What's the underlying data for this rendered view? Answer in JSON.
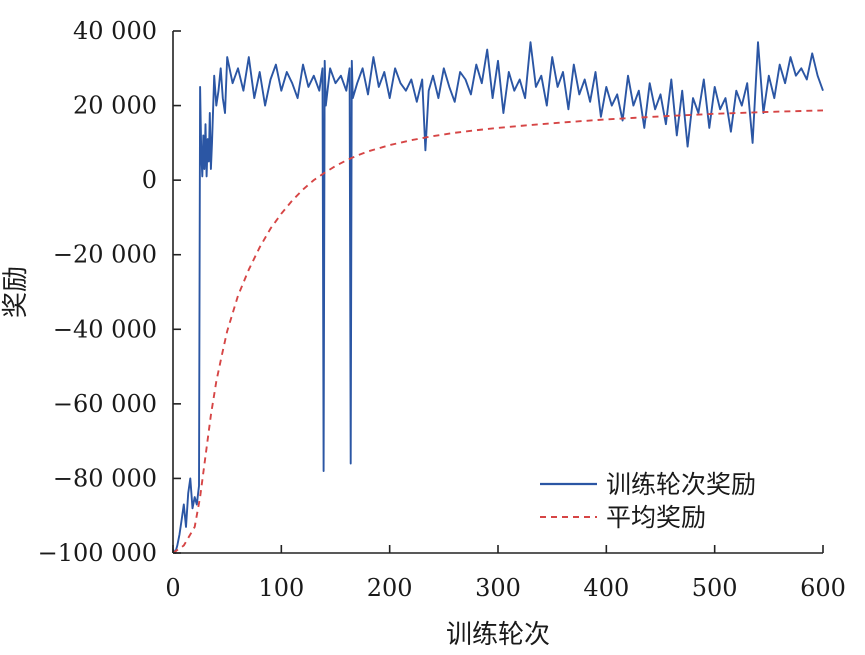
{
  "chart_data": {
    "type": "line",
    "xlabel": "训练轮次",
    "ylabel": "奖励",
    "xlim": [
      0,
      600
    ],
    "ylim": [
      -100000,
      40000
    ],
    "x_ticks": [
      0,
      100,
      200,
      300,
      400,
      500,
      600
    ],
    "x_tick_labels": [
      "0",
      "100",
      "200",
      "300",
      "400",
      "500",
      "600"
    ],
    "y_ticks": [
      40000,
      20000,
      0,
      -20000,
      -40000,
      -60000,
      -80000,
      -100000
    ],
    "y_tick_labels": [
      "40 000",
      "20 000",
      "0",
      "−20 000",
      "−40 000",
      "−60 000",
      "−80 000",
      "−100 000"
    ],
    "grid": false,
    "legend_position": "bottom-right",
    "series": [
      {
        "name": "训练轮次奖励",
        "color": "#2b56a4",
        "style": "solid",
        "x": [
          0,
          2,
          4,
          6,
          8,
          10,
          12,
          14,
          16,
          18,
          20,
          22,
          24,
          25,
          26,
          27,
          28,
          29,
          30,
          31,
          32,
          33,
          34,
          35,
          36,
          38,
          40,
          42,
          44,
          46,
          48,
          50,
          55,
          60,
          65,
          70,
          75,
          80,
          85,
          90,
          95,
          100,
          105,
          110,
          115,
          120,
          125,
          130,
          135,
          138,
          139,
          140,
          141,
          145,
          150,
          155,
          160,
          163,
          164,
          165,
          166,
          170,
          175,
          180,
          185,
          190,
          195,
          200,
          205,
          210,
          215,
          220,
          225,
          230,
          233,
          236,
          240,
          245,
          250,
          255,
          260,
          265,
          270,
          275,
          280,
          285,
          290,
          295,
          300,
          305,
          310,
          315,
          320,
          325,
          330,
          335,
          340,
          345,
          350,
          355,
          360,
          365,
          370,
          375,
          380,
          385,
          390,
          395,
          400,
          405,
          410,
          415,
          420,
          425,
          430,
          435,
          440,
          445,
          450,
          455,
          460,
          465,
          470,
          475,
          480,
          485,
          490,
          495,
          500,
          505,
          510,
          515,
          520,
          525,
          530,
          535,
          540,
          545,
          550,
          555,
          560,
          565,
          570,
          575,
          580,
          585,
          590,
          595,
          600
        ],
        "y": [
          -99000,
          -100000,
          -98000,
          -95000,
          -91000,
          -87000,
          -93000,
          -84000,
          -80000,
          -88000,
          -85000,
          -87000,
          -82000,
          25000,
          8000,
          1000,
          12000,
          3000,
          15000,
          1000,
          11000,
          5000,
          18000,
          3000,
          10000,
          28000,
          20000,
          24000,
          30000,
          22000,
          18000,
          33000,
          26000,
          30000,
          24000,
          33000,
          22000,
          29000,
          20000,
          27000,
          31000,
          24000,
          29000,
          26000,
          22000,
          31000,
          25000,
          28000,
          24000,
          30000,
          -78000,
          32000,
          20000,
          30000,
          26000,
          28000,
          24000,
          30000,
          -76000,
          32000,
          22000,
          26000,
          30000,
          23000,
          33000,
          25000,
          29000,
          22000,
          30000,
          26000,
          24000,
          27000,
          21000,
          27000,
          8000,
          24000,
          28000,
          22000,
          30000,
          25000,
          21000,
          29000,
          27000,
          23000,
          31000,
          26000,
          35000,
          22000,
          32000,
          18000,
          29000,
          24000,
          27000,
          22000,
          37000,
          25000,
          28000,
          20000,
          33000,
          25000,
          29000,
          19000,
          31000,
          23000,
          27000,
          21000,
          29000,
          17000,
          25000,
          20000,
          23000,
          16000,
          28000,
          20000,
          24000,
          14000,
          26000,
          19000,
          23000,
          15000,
          27000,
          12000,
          24000,
          9000,
          22000,
          18000,
          27000,
          14000,
          25000,
          19000,
          22000,
          13000,
          24000,
          20000,
          26000,
          10000,
          37000,
          18000,
          28000,
          22000,
          31000,
          26000,
          33000,
          28000,
          30000,
          27000,
          34000,
          28000,
          24000
        ]
      },
      {
        "name": "平均奖励",
        "color": "#d64545",
        "style": "dashed",
        "x": [
          0,
          10,
          20,
          25,
          30,
          35,
          40,
          45,
          50,
          60,
          70,
          80,
          90,
          100,
          110,
          120,
          130,
          140,
          150,
          160,
          170,
          180,
          200,
          220,
          240,
          260,
          280,
          300,
          330,
          360,
          400,
          450,
          500,
          550,
          600
        ],
        "y": [
          -100000,
          -98000,
          -93000,
          -85000,
          -74000,
          -63000,
          -54000,
          -47000,
          -40500,
          -31000,
          -24000,
          -18000,
          -13000,
          -9000,
          -5500,
          -2500,
          0,
          2000,
          3800,
          5300,
          6600,
          7700,
          9400,
          10700,
          11800,
          12700,
          13400,
          14000,
          14800,
          15500,
          16300,
          17100,
          17800,
          18300,
          18700
        ]
      }
    ]
  }
}
